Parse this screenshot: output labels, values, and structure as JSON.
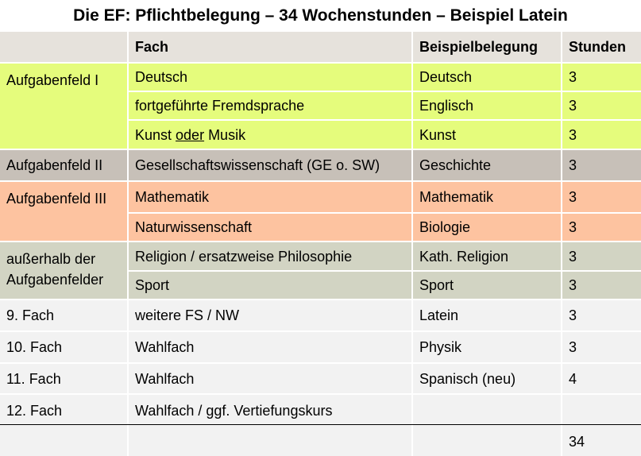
{
  "title": "Die EF: Pflichtbelegung – 34 Wochenstunden – Beispiel Latein",
  "headers": {
    "fach": "Fach",
    "belegung": "Beispielbelegung",
    "stunden": "Stunden"
  },
  "groups": {
    "af1": "Aufgabenfeld I",
    "af2": "Aufgabenfeld II",
    "af3": "Aufgabenfeld III",
    "ausser": "außerhalb der Aufgabenfelder"
  },
  "rows": [
    {
      "fach": "Deutsch",
      "belegung": "Deutsch",
      "stunden": "3"
    },
    {
      "fach": "fortgeführte Fremdsprache",
      "belegung": "Englisch",
      "stunden": "3"
    },
    {
      "fach_a": "Kunst ",
      "fach_b": "oder",
      "fach_c": " Musik",
      "belegung": "Kunst",
      "stunden": "3"
    },
    {
      "fach": "Gesellschaftswissenschaft (GE o. SW)",
      "belegung": "Geschichte",
      "stunden": "3"
    },
    {
      "fach": "Mathematik",
      "belegung": "Mathematik",
      "stunden": "3"
    },
    {
      "fach": "Naturwissenschaft",
      "belegung": "Biologie",
      "stunden": "3"
    },
    {
      "fach": "Religion / ersatzweise Philosophie",
      "belegung": "Kath. Religion",
      "stunden": "3"
    },
    {
      "fach": "Sport",
      "belegung": "Sport",
      "stunden": "3"
    },
    {
      "label": "9. Fach",
      "fach": "weitere FS / NW",
      "belegung": "Latein",
      "stunden": "3"
    },
    {
      "label": "10. Fach",
      "fach": "Wahlfach",
      "belegung": "Physik",
      "stunden": "3"
    },
    {
      "label": "11. Fach",
      "fach": "Wahlfach",
      "belegung": "Spanisch (neu)",
      "stunden": "4"
    },
    {
      "label": "12. Fach",
      "fach": "Wahlfach / ggf. Vertiefungskurs",
      "belegung": "",
      "stunden": ""
    }
  ],
  "total": "34",
  "colors": {
    "header": "#e6e2dc",
    "aufgabenfeld_1": "#e5fc7c",
    "aufgabenfeld_2": "#c7c0b8",
    "aufgabenfeld_3": "#fdc3a0",
    "ausserhalb": "#d2d4c3",
    "weitere": "#f2f2f2"
  }
}
